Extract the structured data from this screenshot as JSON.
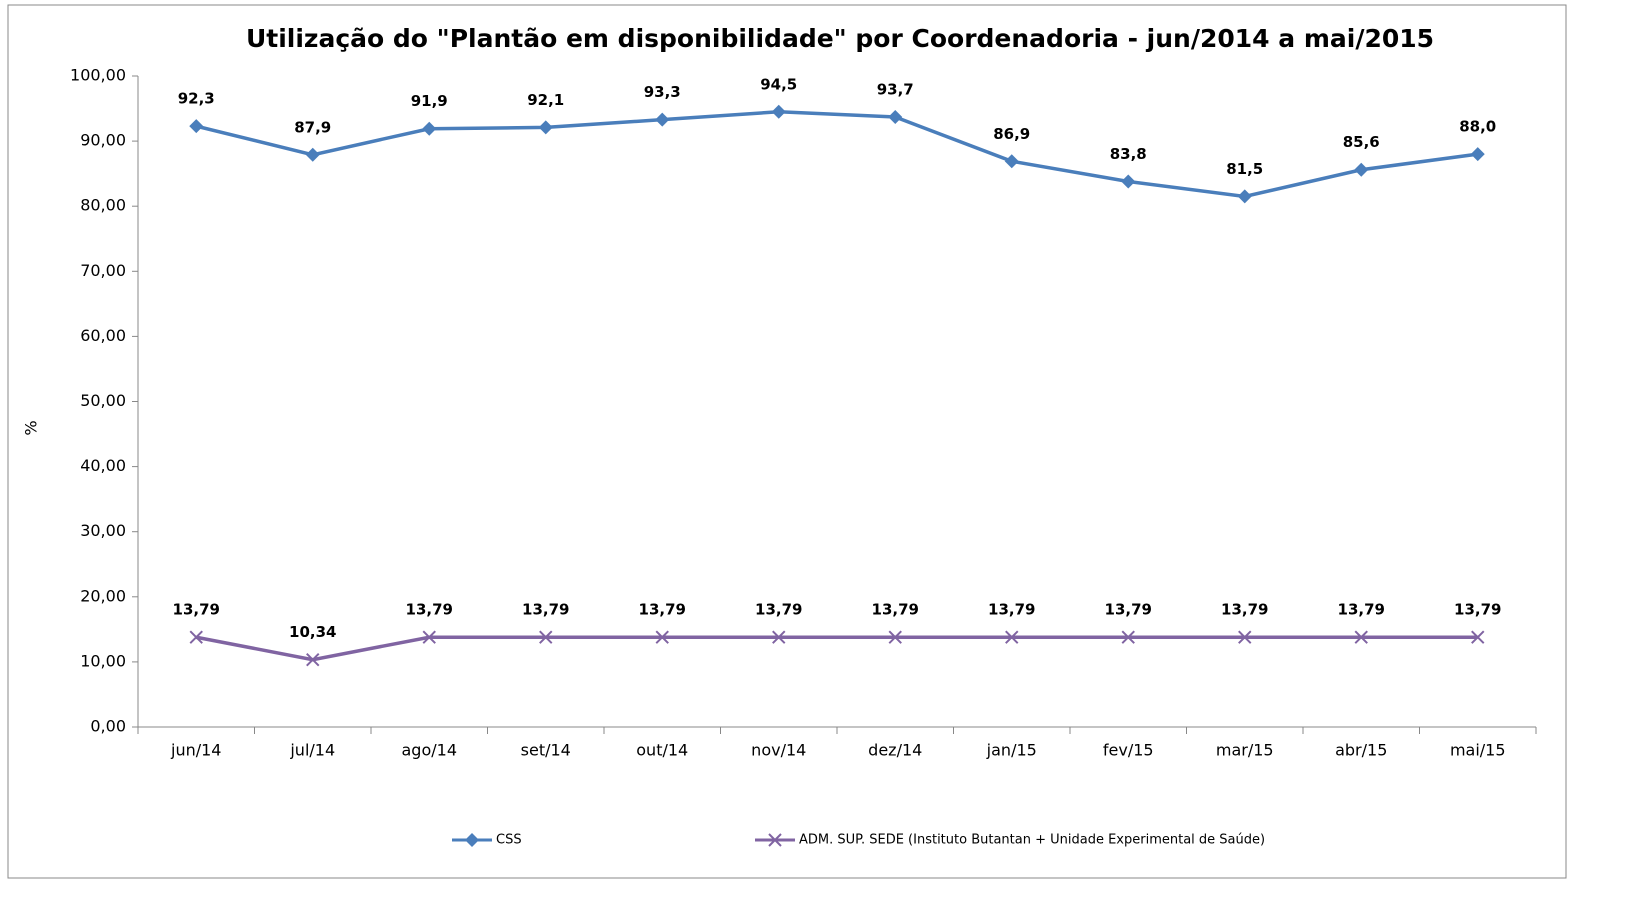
{
  "chart_data": {
    "type": "line",
    "title": "Utilização do \"Plantão em disponibilidade\" por Coordenadoria - jun/2014 a mai/2015",
    "y_label": "%",
    "categories": [
      "jun/14",
      "jul/14",
      "ago/14",
      "set/14",
      "out/14",
      "nov/14",
      "dez/14",
      "jan/15",
      "fev/15",
      "mar/15",
      "abr/15",
      "mai/15"
    ],
    "series": [
      {
        "name": "CSS",
        "color": "#4a7ebb",
        "marker": "diamond",
        "values": [
          92.3,
          87.9,
          91.9,
          92.1,
          93.3,
          94.5,
          93.7,
          86.9,
          83.8,
          81.5,
          85.6,
          88.0
        ],
        "value_labels": [
          "92,3",
          "87,9",
          "91,9",
          "92,1",
          "93,3",
          "94,5",
          "93,7",
          "86,9",
          "83,8",
          "81,5",
          "85,6",
          "88,0"
        ]
      },
      {
        "name": "ADM. SUP. SEDE (Instituto Butantan + Unidade Experimental de Saúde)",
        "color": "#8064a2",
        "marker": "x",
        "values": [
          13.79,
          10.34,
          13.79,
          13.79,
          13.79,
          13.79,
          13.79,
          13.79,
          13.79,
          13.79,
          13.79,
          13.79
        ],
        "value_labels": [
          "13,79",
          "10,34",
          "13,79",
          "13,79",
          "13,79",
          "13,79",
          "13,79",
          "13,79",
          "13,79",
          "13,79",
          "13,79",
          "13,79"
        ]
      }
    ],
    "ylim": [
      0,
      100
    ],
    "yticks": [
      {
        "value": 0,
        "label": "0,00"
      },
      {
        "value": 10,
        "label": "10,00"
      },
      {
        "value": 20,
        "label": "20,00"
      },
      {
        "value": 30,
        "label": "30,00"
      },
      {
        "value": 40,
        "label": "40,00"
      },
      {
        "value": 50,
        "label": "50,00"
      },
      {
        "value": 60,
        "label": "60,00"
      },
      {
        "value": 70,
        "label": "70,00"
      },
      {
        "value": 80,
        "label": "80,00"
      },
      {
        "value": 90,
        "label": "90,00"
      },
      {
        "value": 100,
        "label": "100,00"
      }
    ],
    "grid": false,
    "legend": "bottom"
  }
}
